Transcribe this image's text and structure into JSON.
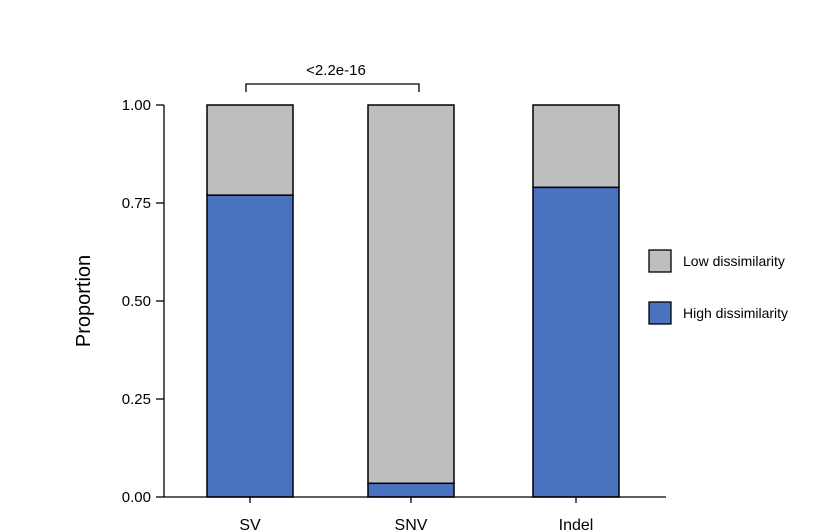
{
  "chart_data": {
    "type": "bar",
    "stacked": true,
    "categories": [
      "SV",
      "SNV",
      "Indel"
    ],
    "series": [
      {
        "name": "High dissimilarity",
        "values": [
          0.77,
          0.035,
          0.79
        ],
        "color": "#4A72BF"
      },
      {
        "name": "Low dissimilarity",
        "values": [
          0.23,
          0.965,
          0.21
        ],
        "color": "#BEBEBE"
      }
    ],
    "title": "",
    "xlabel": "",
    "ylabel": "Proportion",
    "ylim": [
      0,
      1
    ],
    "yticks": [
      0,
      0.25,
      0.5,
      0.75,
      1
    ],
    "ytick_labels": [
      "0.00",
      "0.25",
      "0.50",
      "0.75",
      "1.00"
    ],
    "grid": false,
    "legend": {
      "placement": "right",
      "entries": [
        "Low dissimilarity",
        "High dissimilarity"
      ]
    },
    "annotation": {
      "text": "<2.2e-16",
      "from_category": "SV",
      "to_category": "SNV"
    }
  }
}
